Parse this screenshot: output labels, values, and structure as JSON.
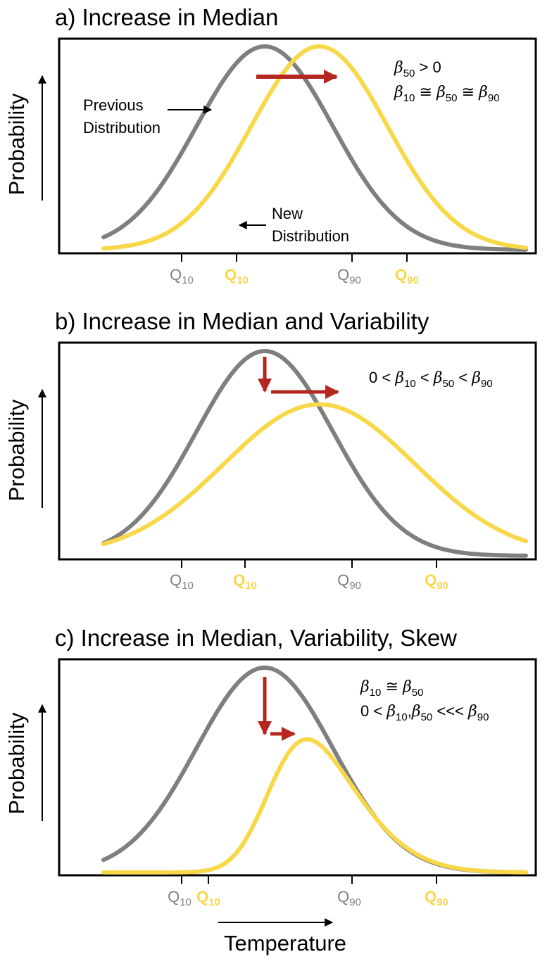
{
  "colors": {
    "previous": "#7f7f7f",
    "new": "#f8d748",
    "arrow": "#b5261e",
    "axis": "#000000"
  },
  "panels": [
    {
      "title": "a) Increase in Median",
      "ylabel": "Probability",
      "formula_lines": [
        [
          {
            "t": "β",
            "g": true
          },
          {
            "t": "50",
            "s": true
          },
          {
            "t": " > 0"
          }
        ],
        [
          {
            "t": "β",
            "g": true
          },
          {
            "t": "10",
            "s": true
          },
          {
            "t": " ≅ "
          },
          {
            "t": "β",
            "g": true
          },
          {
            "t": "50",
            "s": true
          },
          {
            "t": " ≅ "
          },
          {
            "t": "β",
            "g": true
          },
          {
            "t": "90",
            "s": true
          }
        ]
      ],
      "annotations": {
        "previous": [
          "Previous",
          "Distribution"
        ],
        "new": [
          "New",
          "Distribution"
        ]
      },
      "ticks": [
        {
          "label": "Q",
          "sub": "10",
          "color": "previous"
        },
        {
          "label": "Q",
          "sub": "10",
          "color": "new"
        },
        {
          "label": "Q",
          "sub": "90",
          "color": "previous"
        },
        {
          "label": "Q",
          "sub": "90",
          "color": "new"
        }
      ],
      "curves": {
        "previous": {
          "mean": 0.0,
          "sd": 1.0,
          "skew": 0.0,
          "peak": 1.0
        },
        "new": {
          "mean": 0.8,
          "sd": 1.0,
          "skew": 0.0,
          "peak": 1.0
        }
      },
      "shift_arrows": [
        "right"
      ]
    },
    {
      "title": "b) Increase in Median and Variability",
      "ylabel": "Probability",
      "formula_lines": [
        [
          {
            "t": "0 < "
          },
          {
            "t": "β",
            "g": true
          },
          {
            "t": "10",
            "s": true
          },
          {
            "t": " < "
          },
          {
            "t": "β",
            "g": true
          },
          {
            "t": "50",
            "s": true
          },
          {
            "t": " < "
          },
          {
            "t": "β",
            "g": true
          },
          {
            "t": "90",
            "s": true
          }
        ]
      ],
      "annotations": {},
      "ticks": [
        {
          "label": "Q",
          "sub": "10",
          "color": "previous"
        },
        {
          "label": "Q",
          "sub": "10",
          "color": "new"
        },
        {
          "label": "Q",
          "sub": "90",
          "color": "previous"
        },
        {
          "label": "Q",
          "sub": "90",
          "color": "new"
        }
      ],
      "curves": {
        "previous": {
          "mean": 0.0,
          "sd": 1.0,
          "skew": 0.0,
          "peak": 1.0
        },
        "new": {
          "mean": 0.8,
          "sd": 1.4,
          "skew": 0.0,
          "peak": 0.74
        }
      },
      "shift_arrows": [
        "down",
        "right"
      ]
    },
    {
      "title": "c) Increase in Median, Variability, Skew",
      "ylabel": "Probability",
      "formula_lines": [
        [
          {
            "t": "β",
            "g": true
          },
          {
            "t": "10",
            "s": true
          },
          {
            "t": " ≅ "
          },
          {
            "t": "β",
            "g": true
          },
          {
            "t": "50",
            "s": true
          }
        ],
        [
          {
            "t": "0 < "
          },
          {
            "t": "β",
            "g": true
          },
          {
            "t": "10",
            "s": true
          },
          {
            "t": ","
          },
          {
            "t": "β",
            "g": true
          },
          {
            "t": "50",
            "s": true
          },
          {
            "t": " <<< "
          },
          {
            "t": "β",
            "g": true
          },
          {
            "t": "90",
            "s": true
          }
        ]
      ],
      "annotations": {},
      "ticks": [
        {
          "label": "Q",
          "sub": "10",
          "color": "previous"
        },
        {
          "label": "Q",
          "sub": "10",
          "color": "new"
        },
        {
          "label": "Q",
          "sub": "90",
          "color": "previous"
        },
        {
          "label": "Q",
          "sub": "90",
          "color": "new"
        }
      ],
      "curves": {
        "previous": {
          "mean": 0.0,
          "sd": 1.0,
          "skew": 0.0,
          "peak": 1.0
        },
        "new": {
          "mean": 0.1,
          "sd": 1.0,
          "skew": 1.0,
          "peak": 0.65
        }
      },
      "shift_arrows": [
        "down",
        "right"
      ]
    }
  ],
  "xlabel": "Temperature"
}
